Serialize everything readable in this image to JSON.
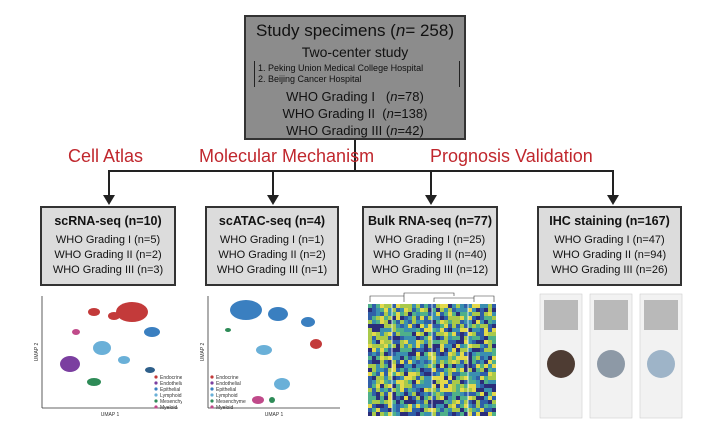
{
  "study": {
    "title_prefix": "Study specimens (",
    "title_n": "n",
    "title_suffix": "= 258)",
    "center_title": "Two-center study",
    "hospitals": [
      "1. Peking Union Medical College Hospital",
      "2. Beijing Cancer Hospital"
    ],
    "grades": [
      {
        "label": "WHO Grading I",
        "n_prefix": "(",
        "n": "n",
        "n_suffix": "=78)"
      },
      {
        "label": "WHO Grading II",
        "n_prefix": "(",
        "n": "n",
        "n_suffix": "=138)"
      },
      {
        "label": "WHO Grading III",
        "n_prefix": "(",
        "n": "n",
        "n_suffix": "=42)"
      }
    ]
  },
  "categories": [
    "Cell Atlas",
    "Molecular Mechanism",
    "Prognosis Validation"
  ],
  "methods": [
    {
      "title": "scRNA-seq (n=10)",
      "grades": [
        "WHO Grading I (n=5)",
        "WHO Grading II (n=2)",
        "WHO Grading III (n=3)"
      ]
    },
    {
      "title": "scATAC-seq (n=4)",
      "grades": [
        "WHO Grading I (n=1)",
        "WHO Grading II (n=2)",
        "WHO Grading III (n=1)"
      ]
    },
    {
      "title": "Bulk RNA-seq (n=77)",
      "grades": [
        "WHO Grading I (n=25)",
        "WHO Grading II (n=40)",
        "WHO Grading III (n=12)"
      ]
    },
    {
      "title": "IHC staining (n=167)",
      "grades": [
        "WHO Grading I (n=47)",
        "WHO Grading II (n=94)",
        "WHO Grading III (n=26)"
      ]
    }
  ],
  "umap": {
    "xlabel": "UMAP 1",
    "ylabel": "UMAP 2",
    "legend": [
      {
        "label": "Endocrine",
        "color": "#c33a3a"
      },
      {
        "label": "Endothelial",
        "color": "#7b3fa0"
      },
      {
        "label": "Epithelial",
        "color": "#3a7fc0"
      },
      {
        "label": "Lymphoid",
        "color": "#6ab0d8"
      },
      {
        "label": "Mesenchyme",
        "color": "#2e8b57"
      },
      {
        "label": "Myeloid",
        "color": "#c04a8a"
      }
    ]
  }
}
